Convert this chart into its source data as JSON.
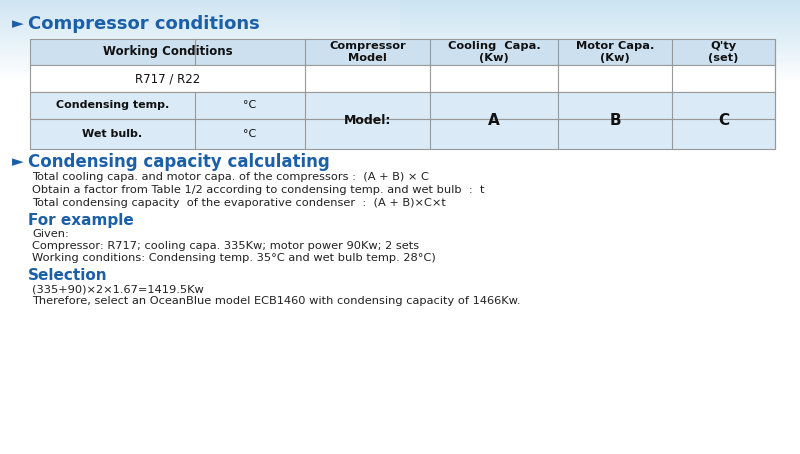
{
  "title": "Compressor conditions",
  "bg_color": "#ffffff",
  "header_bg": "#cce0f0",
  "row1_bg": "#ffffff",
  "row23_bg": "#daeaf6",
  "table_border": "#999999",
  "blue_heading": "#1a5fa8",
  "section2_title": "Condensing capacity calculating",
  "section2_lines": [
    "Total cooling capa. and motor capa. of the compressors :  (A + B) × C",
    "Obtain a factor from Table 1/2 according to condensing temp. and wet bulb  :  t",
    "Total condensing capacity  of the evaporative condenser  :  (A + B)×C×t"
  ],
  "section3_title": "For example",
  "section3_lines": [
    "Given:",
    "Compressor: R717; cooling capa. 335Kw; motor power 90Kw; 2 sets",
    "Working conditions: Condensing temp. 35°C and wet bulb temp. 28°C)"
  ],
  "section4_title": "Selection",
  "section4_lines": [
    "(335+90)×2×1.67=1419.5Kw",
    "Therefore, select an OceanBlue model ECB1460 with condensing capacity of 1466Kw."
  ],
  "top_gradient_color": "#a8d0e8",
  "gradient_right_color": "#c8e4f4"
}
